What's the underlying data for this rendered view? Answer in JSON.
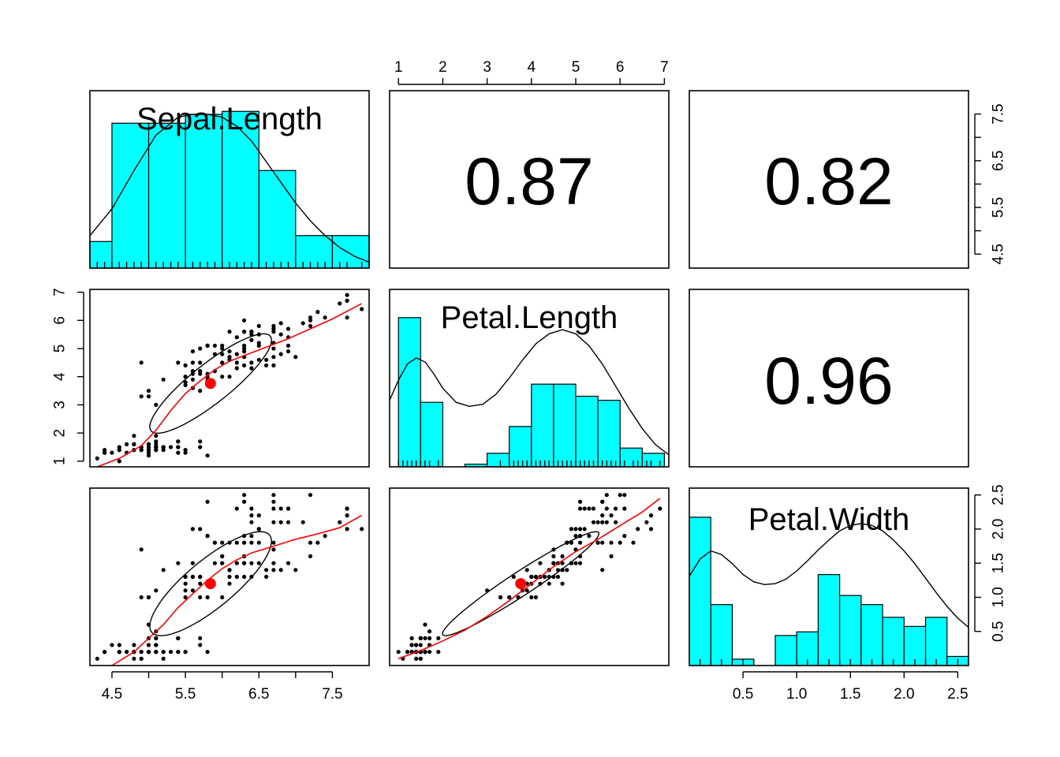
{
  "chart_data": {
    "type": "scatter-matrix",
    "variables": [
      "Sepal.Length",
      "Petal.Length",
      "Petal.Width"
    ],
    "colors": {
      "hist_fill": "#00ffff",
      "smooth": "#ff0000",
      "centroid": "#ff0000",
      "points": "#000000"
    },
    "axes": {
      "Sepal.Length": {
        "range": [
          4.2,
          8.0
        ],
        "ticks": [
          4.5,
          5.5,
          6.5,
          7.5
        ],
        "tick_labels": [
          "4.5",
          "5.5",
          "6.5",
          "7.5"
        ],
        "minor_ticks": [
          5.0,
          6.0,
          7.0
        ]
      },
      "Petal.Length": {
        "range": [
          0.8,
          7.1
        ],
        "ticks": [
          1,
          2,
          3,
          4,
          5,
          6,
          7
        ],
        "tick_labels": [
          "1",
          "2",
          "3",
          "4",
          "5",
          "6",
          "7"
        ]
      },
      "Petal.Width": {
        "range": [
          0.0,
          2.6
        ],
        "ticks": [
          0.5,
          1.0,
          1.5,
          2.0,
          2.5
        ],
        "tick_labels": [
          "0.5",
          "1.0",
          "1.5",
          "2.0",
          "2.5"
        ]
      }
    },
    "correlations": [
      {
        "row": 0,
        "col": 1,
        "label": "0.87",
        "value": 0.87
      },
      {
        "row": 0,
        "col": 2,
        "label": "0.82",
        "value": 0.82
      },
      {
        "row": 1,
        "col": 2,
        "label": "0.96",
        "value": 0.96
      }
    ],
    "histograms": {
      "Sepal.Length": {
        "breaks": [
          4.2,
          4.5,
          5.0,
          5.5,
          6.0,
          6.5,
          7.0,
          7.5,
          8.0
        ],
        "density": [
          0.09,
          0.49,
          0.49,
          0.52,
          0.53,
          0.33,
          0.11,
          0.11
        ],
        "ymax": 0.6,
        "kde_x": [
          4.2,
          4.5,
          4.8,
          5.1,
          5.4,
          5.6,
          5.8,
          6.0,
          6.2,
          6.4,
          6.6,
          6.8,
          7.0,
          7.2,
          7.4,
          7.6,
          7.8,
          8.0
        ],
        "kde_y": [
          0.11,
          0.2,
          0.33,
          0.45,
          0.51,
          0.52,
          0.52,
          0.51,
          0.48,
          0.43,
          0.36,
          0.29,
          0.22,
          0.16,
          0.11,
          0.07,
          0.04,
          0.02
        ]
      },
      "Petal.Length": {
        "breaks": [
          1,
          1.5,
          2,
          2.5,
          3,
          3.5,
          4,
          4.5,
          5,
          5.5,
          6,
          6.5,
          7
        ],
        "density": [
          0.74,
          0.32,
          0.0,
          0.013,
          0.067,
          0.2,
          0.41,
          0.41,
          0.35,
          0.33,
          0.093,
          0.067
        ],
        "ymax": 0.88,
        "kde_x": [
          0.8,
          1.0,
          1.2,
          1.4,
          1.6,
          1.8,
          2.0,
          2.3,
          2.6,
          2.9,
          3.2,
          3.5,
          3.8,
          4.1,
          4.4,
          4.7,
          5.0,
          5.3,
          5.6,
          5.9,
          6.2,
          6.5,
          6.8,
          7.1
        ],
        "kde_y": [
          0.33,
          0.43,
          0.51,
          0.54,
          0.52,
          0.46,
          0.39,
          0.32,
          0.3,
          0.31,
          0.36,
          0.44,
          0.53,
          0.61,
          0.66,
          0.68,
          0.66,
          0.6,
          0.51,
          0.4,
          0.29,
          0.19,
          0.11,
          0.06
        ]
      },
      "Petal.Width": {
        "breaks": [
          0,
          0.2,
          0.4,
          0.6,
          0.8,
          1.0,
          1.2,
          1.4,
          1.6,
          1.8,
          2.0,
          2.2,
          2.4,
          2.6
        ],
        "density": [
          1.63,
          0.67,
          0.07,
          0.0,
          0.33,
          0.37,
          1.0,
          0.77,
          0.67,
          0.53,
          0.43,
          0.53,
          0.1
        ],
        "ymax": 1.95,
        "kde_x": [
          0.0,
          0.1,
          0.2,
          0.3,
          0.4,
          0.5,
          0.6,
          0.7,
          0.8,
          0.9,
          1.0,
          1.1,
          1.2,
          1.3,
          1.4,
          1.5,
          1.6,
          1.7,
          1.8,
          1.9,
          2.0,
          2.1,
          2.2,
          2.3,
          2.4,
          2.5,
          2.6
        ],
        "kde_y": [
          0.98,
          1.17,
          1.26,
          1.22,
          1.12,
          1.0,
          0.92,
          0.89,
          0.9,
          0.95,
          1.04,
          1.15,
          1.27,
          1.38,
          1.48,
          1.54,
          1.56,
          1.54,
          1.48,
          1.38,
          1.26,
          1.12,
          0.96,
          0.8,
          0.65,
          0.52,
          0.42
        ]
      }
    },
    "scatter_means": {
      "Sepal.Length": 5.84,
      "Petal.Length": 3.76,
      "Petal.Width": 1.2
    },
    "scatter_points": [
      [
        5.1,
        1.4,
        0.2
      ],
      [
        4.9,
        1.4,
        0.2
      ],
      [
        4.7,
        1.3,
        0.2
      ],
      [
        4.6,
        1.5,
        0.2
      ],
      [
        5.0,
        1.4,
        0.2
      ],
      [
        5.4,
        1.7,
        0.4
      ],
      [
        4.6,
        1.4,
        0.3
      ],
      [
        5.0,
        1.5,
        0.2
      ],
      [
        4.4,
        1.4,
        0.2
      ],
      [
        4.9,
        1.5,
        0.1
      ],
      [
        5.4,
        1.5,
        0.2
      ],
      [
        4.8,
        1.6,
        0.2
      ],
      [
        4.8,
        1.4,
        0.1
      ],
      [
        4.3,
        1.1,
        0.1
      ],
      [
        5.8,
        1.2,
        0.2
      ],
      [
        5.7,
        1.5,
        0.4
      ],
      [
        5.4,
        1.3,
        0.4
      ],
      [
        5.1,
        1.4,
        0.3
      ],
      [
        5.7,
        1.7,
        0.3
      ],
      [
        5.1,
        1.5,
        0.3
      ],
      [
        5.4,
        1.7,
        0.2
      ],
      [
        5.1,
        1.5,
        0.4
      ],
      [
        4.6,
        1.0,
        0.2
      ],
      [
        5.1,
        1.7,
        0.5
      ],
      [
        4.8,
        1.9,
        0.2
      ],
      [
        5.0,
        1.6,
        0.2
      ],
      [
        5.0,
        1.6,
        0.4
      ],
      [
        5.2,
        1.5,
        0.2
      ],
      [
        5.2,
        1.4,
        0.2
      ],
      [
        4.7,
        1.6,
        0.2
      ],
      [
        4.8,
        1.6,
        0.2
      ],
      [
        5.4,
        1.5,
        0.4
      ],
      [
        5.2,
        1.5,
        0.1
      ],
      [
        5.5,
        1.4,
        0.2
      ],
      [
        4.9,
        1.5,
        0.2
      ],
      [
        5.0,
        1.2,
        0.2
      ],
      [
        5.5,
        1.3,
        0.2
      ],
      [
        4.9,
        1.4,
        0.1
      ],
      [
        4.4,
        1.3,
        0.2
      ],
      [
        5.1,
        1.5,
        0.2
      ],
      [
        5.0,
        1.3,
        0.3
      ],
      [
        4.5,
        1.3,
        0.3
      ],
      [
        4.4,
        1.3,
        0.2
      ],
      [
        5.0,
        1.6,
        0.6
      ],
      [
        5.1,
        1.9,
        0.4
      ],
      [
        4.8,
        1.4,
        0.3
      ],
      [
        5.1,
        1.6,
        0.2
      ],
      [
        4.6,
        1.4,
        0.2
      ],
      [
        5.3,
        1.5,
        0.2
      ],
      [
        5.0,
        1.4,
        0.2
      ],
      [
        7.0,
        4.7,
        1.4
      ],
      [
        6.4,
        4.5,
        1.5
      ],
      [
        6.9,
        4.9,
        1.5
      ],
      [
        5.5,
        4.0,
        1.3
      ],
      [
        6.5,
        4.6,
        1.5
      ],
      [
        5.7,
        4.5,
        1.3
      ],
      [
        6.3,
        4.7,
        1.6
      ],
      [
        4.9,
        3.3,
        1.0
      ],
      [
        6.6,
        4.6,
        1.3
      ],
      [
        5.2,
        3.9,
        1.4
      ],
      [
        5.0,
        3.5,
        1.0
      ],
      [
        5.9,
        4.2,
        1.5
      ],
      [
        6.0,
        4.0,
        1.0
      ],
      [
        6.1,
        4.7,
        1.4
      ],
      [
        5.6,
        3.6,
        1.3
      ],
      [
        6.7,
        4.4,
        1.4
      ],
      [
        5.6,
        4.5,
        1.5
      ],
      [
        5.8,
        4.1,
        1.0
      ],
      [
        6.2,
        4.5,
        1.5
      ],
      [
        5.6,
        3.9,
        1.1
      ],
      [
        5.9,
        4.8,
        1.8
      ],
      [
        6.1,
        4.0,
        1.3
      ],
      [
        6.3,
        4.9,
        1.5
      ],
      [
        6.1,
        4.7,
        1.2
      ],
      [
        6.4,
        4.3,
        1.3
      ],
      [
        6.6,
        4.4,
        1.4
      ],
      [
        6.8,
        4.8,
        1.4
      ],
      [
        6.7,
        5.0,
        1.7
      ],
      [
        6.0,
        4.5,
        1.5
      ],
      [
        5.7,
        3.5,
        1.0
      ],
      [
        5.5,
        3.8,
        1.1
      ],
      [
        5.5,
        3.7,
        1.0
      ],
      [
        5.8,
        3.9,
        1.2
      ],
      [
        6.0,
        5.1,
        1.6
      ],
      [
        5.4,
        4.5,
        1.5
      ],
      [
        6.0,
        4.5,
        1.6
      ],
      [
        6.7,
        4.7,
        1.5
      ],
      [
        6.3,
        4.4,
        1.3
      ],
      [
        5.6,
        4.1,
        1.3
      ],
      [
        5.5,
        4.0,
        1.3
      ],
      [
        5.5,
        4.4,
        1.2
      ],
      [
        6.1,
        4.6,
        1.4
      ],
      [
        5.8,
        4.0,
        1.2
      ],
      [
        5.0,
        3.3,
        1.0
      ],
      [
        5.6,
        4.2,
        1.3
      ],
      [
        5.7,
        4.2,
        1.2
      ],
      [
        5.7,
        4.2,
        1.3
      ],
      [
        6.2,
        4.3,
        1.3
      ],
      [
        5.1,
        3.0,
        1.1
      ],
      [
        5.7,
        4.1,
        1.3
      ],
      [
        6.3,
        6.0,
        2.5
      ],
      [
        5.8,
        5.1,
        1.9
      ],
      [
        7.1,
        5.9,
        2.1
      ],
      [
        6.3,
        5.6,
        1.8
      ],
      [
        6.5,
        5.8,
        2.2
      ],
      [
        7.6,
        6.6,
        2.1
      ],
      [
        4.9,
        4.5,
        1.7
      ],
      [
        7.3,
        6.3,
        1.8
      ],
      [
        6.7,
        5.8,
        1.8
      ],
      [
        7.2,
        6.1,
        2.5
      ],
      [
        6.5,
        5.1,
        2.0
      ],
      [
        6.4,
        5.3,
        1.9
      ],
      [
        6.8,
        5.5,
        2.1
      ],
      [
        5.7,
        5.0,
        2.0
      ],
      [
        5.8,
        5.1,
        2.4
      ],
      [
        6.4,
        5.3,
        2.3
      ],
      [
        6.5,
        5.5,
        1.8
      ],
      [
        7.7,
        6.7,
        2.2
      ],
      [
        7.7,
        6.9,
        2.3
      ],
      [
        6.0,
        5.0,
        1.5
      ],
      [
        6.9,
        5.7,
        2.3
      ],
      [
        5.6,
        4.9,
        2.0
      ],
      [
        7.7,
        6.7,
        2.0
      ],
      [
        6.3,
        4.9,
        1.8
      ],
      [
        6.7,
        5.7,
        2.1
      ],
      [
        7.2,
        6.0,
        1.8
      ],
      [
        6.2,
        4.8,
        1.8
      ],
      [
        6.1,
        4.9,
        1.8
      ],
      [
        6.4,
        5.6,
        2.1
      ],
      [
        7.2,
        5.8,
        1.6
      ],
      [
        7.4,
        6.1,
        1.9
      ],
      [
        7.9,
        6.4,
        2.0
      ],
      [
        6.4,
        5.6,
        2.2
      ],
      [
        6.3,
        5.1,
        1.5
      ],
      [
        6.1,
        5.6,
        1.4
      ],
      [
        7.7,
        6.1,
        2.3
      ],
      [
        6.3,
        5.6,
        2.4
      ],
      [
        6.4,
        5.5,
        1.8
      ],
      [
        6.0,
        4.8,
        1.8
      ],
      [
        6.9,
        5.4,
        2.1
      ],
      [
        6.7,
        5.6,
        2.4
      ],
      [
        6.9,
        5.1,
        2.3
      ],
      [
        5.8,
        5.1,
        1.9
      ],
      [
        6.8,
        5.9,
        2.3
      ],
      [
        6.7,
        5.7,
        2.5
      ],
      [
        6.7,
        5.2,
        2.3
      ],
      [
        6.3,
        5.0,
        1.9
      ],
      [
        6.5,
        5.2,
        2.0
      ],
      [
        6.2,
        5.4,
        2.3
      ],
      [
        5.9,
        5.1,
        1.8
      ]
    ],
    "smooth_lines": {
      "petal_length_vs_sepal_length": {
        "x": [
          4.3,
          4.6,
          4.9,
          5.1,
          5.3,
          5.5,
          5.7,
          5.9,
          6.1,
          6.3,
          6.6,
          6.9,
          7.2,
          7.5,
          7.9
        ],
        "y": [
          0.8,
          1.1,
          1.55,
          2.1,
          2.8,
          3.4,
          3.85,
          4.25,
          4.55,
          4.75,
          5.05,
          5.35,
          5.7,
          6.05,
          6.6
        ]
      },
      "petal_width_vs_sepal_length": {
        "x": [
          4.5,
          4.8,
          5.0,
          5.2,
          5.4,
          5.6,
          5.8,
          6.0,
          6.2,
          6.4,
          6.7,
          7.0,
          7.3,
          7.6,
          7.9
        ],
        "y": [
          0.0,
          0.2,
          0.4,
          0.6,
          0.85,
          1.05,
          1.25,
          1.42,
          1.55,
          1.65,
          1.75,
          1.85,
          1.93,
          2.02,
          2.2
        ]
      },
      "petal_width_vs_petal_length": {
        "x": [
          1.0,
          1.5,
          2.0,
          2.5,
          3.0,
          3.5,
          4.0,
          4.5,
          5.0,
          5.5,
          6.0,
          6.5,
          6.9
        ],
        "y": [
          0.1,
          0.22,
          0.36,
          0.52,
          0.72,
          0.95,
          1.2,
          1.45,
          1.67,
          1.85,
          2.05,
          2.25,
          2.45
        ]
      }
    }
  }
}
